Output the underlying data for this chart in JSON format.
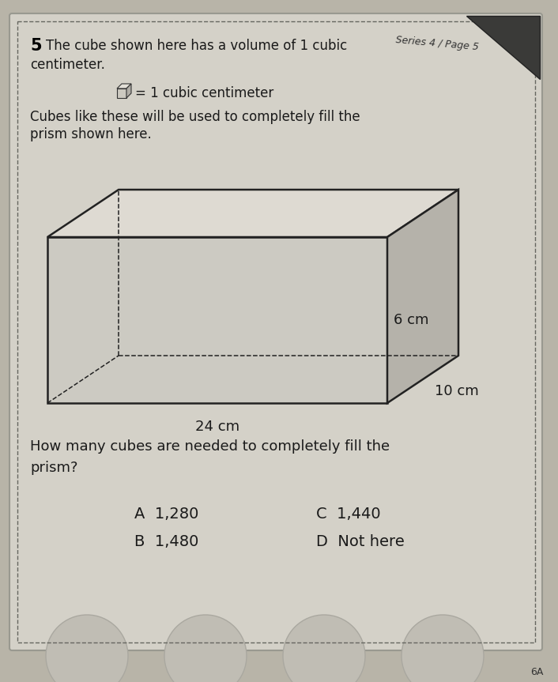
{
  "background_color": "#b8b4a8",
  "card_color": "#d4d1c8",
  "title_number": "5",
  "series_text": "Series 4 / Page 5",
  "cube_label": "= 1 cubic centimeter",
  "dim_length": "24 cm",
  "dim_width": "10 cm",
  "dim_height": "6 cm",
  "answer_A": "A  1,280",
  "answer_B": "B  1,480",
  "answer_C": "C  1,440",
  "answer_D": "D  Not here",
  "footer": "6A",
  "dashed_border_color": "#666660",
  "prism_face_color": "#cccac2",
  "prism_top_color": "#dedad2",
  "prism_side_color": "#b5b2aa",
  "prism_edge_color": "#222222",
  "text_color": "#1a1a1a",
  "bold_color": "#000000"
}
